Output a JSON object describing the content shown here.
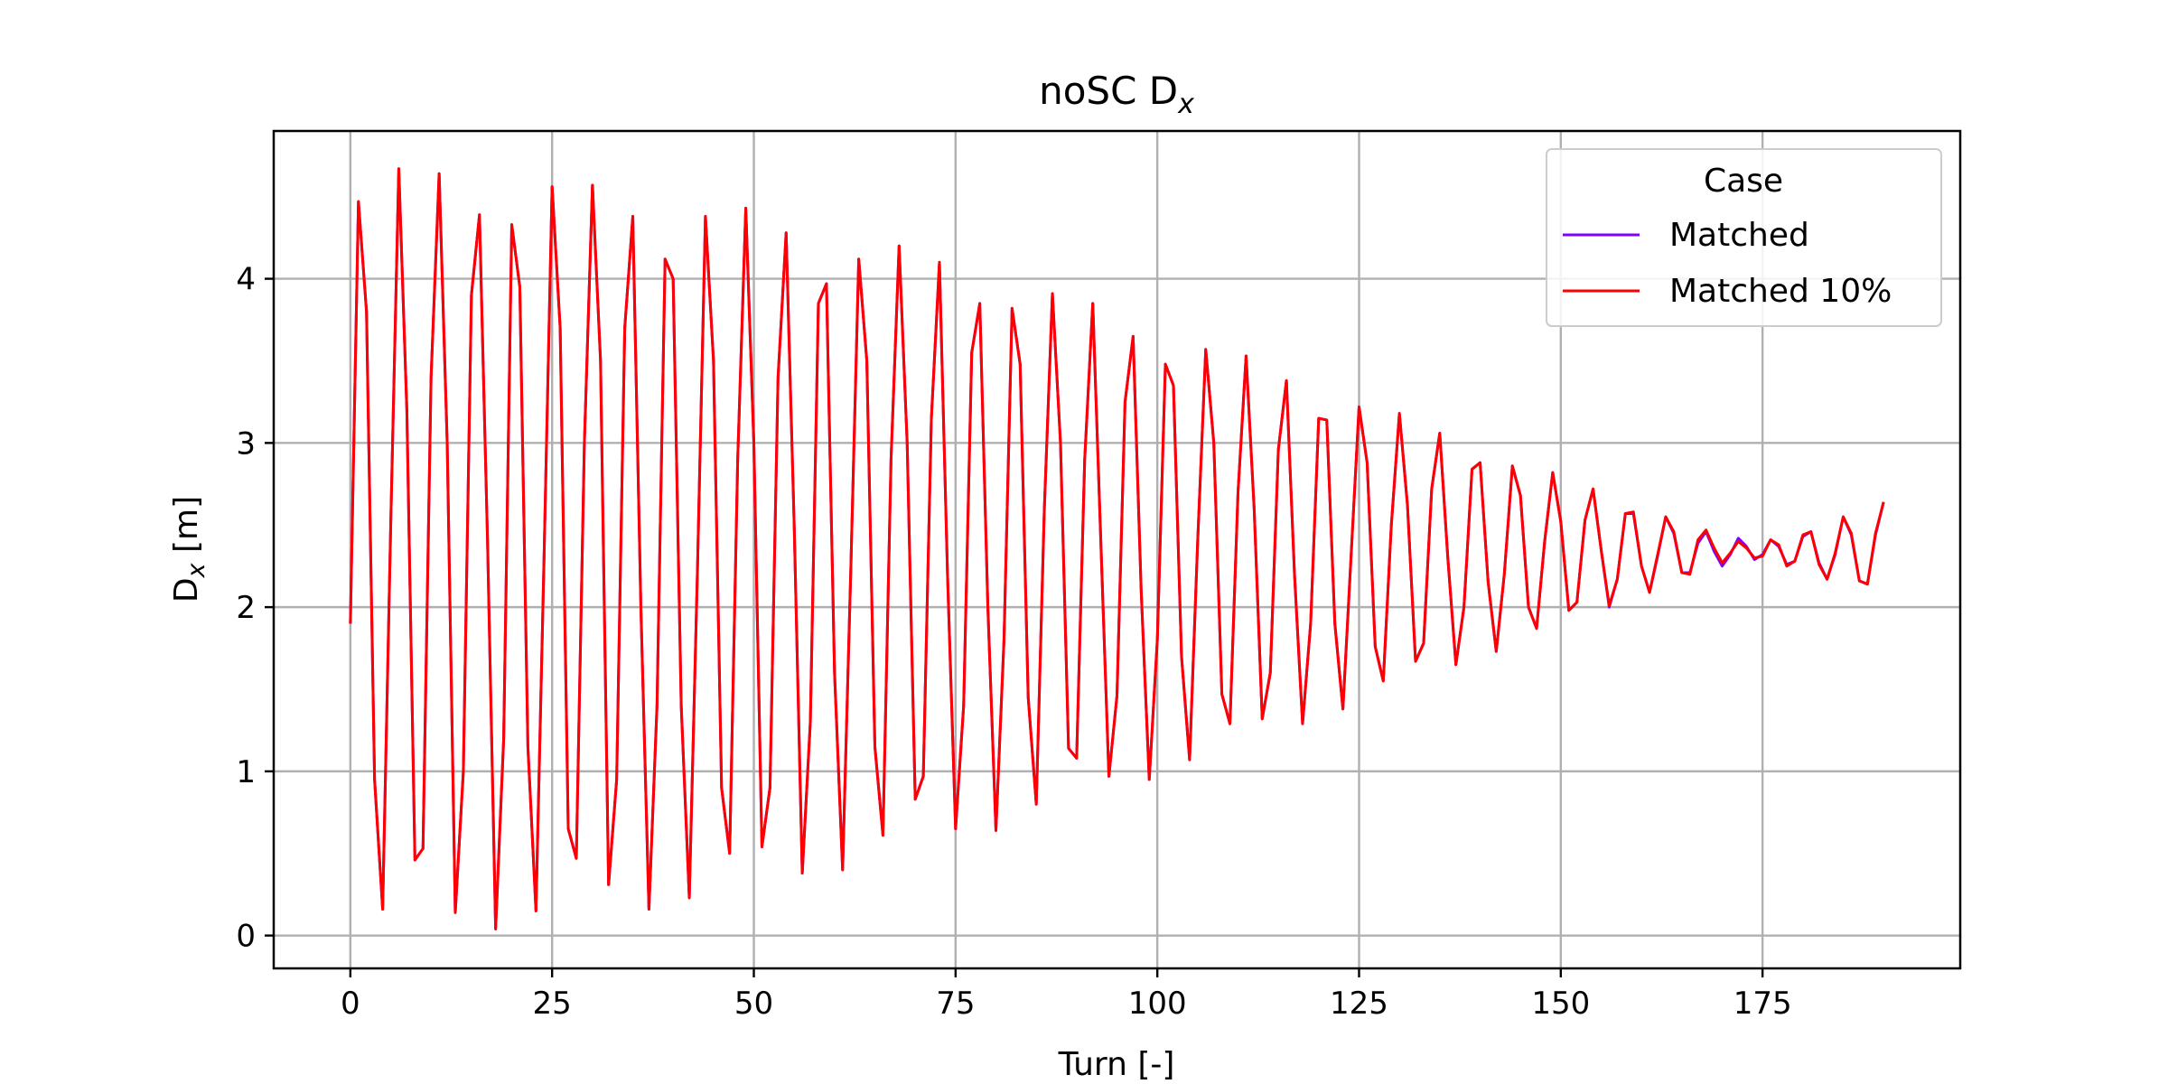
{
  "chart_data": {
    "type": "line",
    "title": {
      "main": "noSC D",
      "sub": "x"
    },
    "xlabel": "Turn [-]",
    "ylabel": {
      "main": "D",
      "sub": "x",
      "rest": " [m]"
    },
    "xlim": [
      -9.5,
      199.5
    ],
    "ylim": [
      -0.2,
      4.9
    ],
    "xticks": [
      0,
      25,
      50,
      75,
      100,
      125,
      150,
      175
    ],
    "yticks": [
      0,
      1,
      2,
      3,
      4
    ],
    "grid": true,
    "legend": {
      "title": "Case",
      "position": "top-right"
    },
    "series": [
      {
        "name": "Matched",
        "color": "#8000ff",
        "x": [
          0,
          1,
          2,
          3,
          4,
          5,
          6,
          7,
          8,
          9,
          10,
          11,
          12,
          13,
          14,
          15,
          16,
          17,
          18,
          19,
          20,
          21,
          22,
          23,
          24,
          25,
          26,
          27,
          28,
          29,
          30,
          31,
          32,
          33,
          34,
          35,
          36,
          37,
          38,
          39,
          40,
          41,
          42,
          43,
          44,
          45,
          46,
          47,
          48,
          49,
          50,
          51,
          52,
          53,
          54,
          55,
          56,
          57,
          58,
          59,
          60,
          61,
          62,
          63,
          64,
          65,
          66,
          67,
          68,
          69,
          70,
          71,
          72,
          73,
          74,
          75,
          76,
          77,
          78,
          79,
          80,
          81,
          82,
          83,
          84,
          85,
          86,
          87,
          88,
          89,
          90,
          91,
          92,
          93,
          94,
          95,
          96,
          97,
          98,
          99,
          100,
          101,
          102,
          103,
          104,
          105,
          106,
          107,
          108,
          109,
          110,
          111,
          112,
          113,
          114,
          115,
          116,
          117,
          118,
          119,
          120,
          121,
          122,
          123,
          124,
          125,
          126,
          127,
          128,
          129,
          130,
          131,
          132,
          133,
          134,
          135,
          136,
          137,
          138,
          139,
          140,
          141,
          142,
          143,
          144,
          145,
          146,
          147,
          148,
          149,
          150,
          151,
          152,
          153,
          154,
          155,
          156,
          157,
          158,
          159,
          160,
          161,
          162,
          163,
          164,
          165,
          166,
          167,
          168,
          169,
          170,
          171,
          172,
          173,
          174,
          175,
          176,
          177,
          178,
          179,
          180,
          181,
          182,
          183,
          184,
          185,
          186,
          187,
          188,
          189,
          190
        ],
        "y": [
          1.9,
          4.47,
          3.8,
          0.95,
          0.16,
          2.5,
          4.67,
          3.2,
          0.46,
          0.53,
          3.4,
          4.64,
          3.0,
          0.14,
          1.0,
          3.9,
          4.39,
          2.4,
          0.04,
          1.2,
          4.33,
          3.95,
          1.15,
          0.15,
          2.3,
          4.56,
          3.7,
          0.65,
          0.47,
          3.0,
          4.57,
          3.5,
          0.31,
          0.95,
          3.7,
          4.38,
          2.0,
          0.16,
          1.4,
          4.12,
          4.0,
          1.4,
          0.23,
          2.2,
          4.38,
          3.5,
          0.9,
          0.5,
          2.9,
          4.43,
          3.0,
          0.54,
          0.9,
          3.4,
          4.28,
          2.5,
          0.38,
          1.3,
          3.85,
          3.97,
          1.6,
          0.4,
          2.2,
          4.12,
          3.5,
          1.15,
          0.61,
          2.9,
          4.2,
          3.0,
          0.83,
          0.97,
          3.15,
          4.1,
          2.2,
          0.65,
          1.4,
          3.55,
          3.85,
          2.0,
          0.64,
          1.8,
          3.82,
          3.48,
          1.45,
          0.8,
          2.6,
          3.91,
          3.0,
          1.14,
          1.08,
          2.9,
          3.85,
          2.4,
          0.97,
          1.46,
          3.25,
          3.65,
          2.1,
          0.95,
          1.8,
          3.48,
          3.35,
          1.7,
          1.07,
          2.4,
          3.57,
          3.0,
          1.47,
          1.29,
          2.7,
          3.53,
          2.6,
          1.32,
          1.6,
          2.96,
          3.38,
          2.2,
          1.29,
          1.9,
          3.15,
          3.14,
          1.9,
          1.38,
          2.3,
          3.22,
          2.88,
          1.76,
          1.55,
          2.5,
          3.18,
          2.62,
          1.67,
          1.78,
          2.72,
          3.06,
          2.3,
          1.65,
          2.0,
          2.84,
          2.88,
          2.15,
          1.73,
          2.2,
          2.86,
          2.68,
          2.0,
          1.87,
          2.4,
          2.82,
          2.52,
          1.98,
          2.03,
          2.53,
          2.72,
          2.35,
          2.0,
          2.17,
          2.57,
          2.57,
          2.25,
          2.09,
          2.31,
          2.55,
          2.45,
          2.21,
          2.21,
          2.39,
          2.46,
          2.34,
          2.25,
          2.32,
          2.42,
          2.37,
          2.29,
          2.32,
          2.41,
          2.37,
          2.26,
          2.28,
          2.43,
          2.46,
          2.27,
          2.17,
          2.32,
          2.55,
          2.44,
          2.16,
          2.14,
          2.44,
          2.64
        ]
      },
      {
        "name": "Matched 10%",
        "color": "#ff0000",
        "x": [
          0,
          1,
          2,
          3,
          4,
          5,
          6,
          7,
          8,
          9,
          10,
          11,
          12,
          13,
          14,
          15,
          16,
          17,
          18,
          19,
          20,
          21,
          22,
          23,
          24,
          25,
          26,
          27,
          28,
          29,
          30,
          31,
          32,
          33,
          34,
          35,
          36,
          37,
          38,
          39,
          40,
          41,
          42,
          43,
          44,
          45,
          46,
          47,
          48,
          49,
          50,
          51,
          52,
          53,
          54,
          55,
          56,
          57,
          58,
          59,
          60,
          61,
          62,
          63,
          64,
          65,
          66,
          67,
          68,
          69,
          70,
          71,
          72,
          73,
          74,
          75,
          76,
          77,
          78,
          79,
          80,
          81,
          82,
          83,
          84,
          85,
          86,
          87,
          88,
          89,
          90,
          91,
          92,
          93,
          94,
          95,
          96,
          97,
          98,
          99,
          100,
          101,
          102,
          103,
          104,
          105,
          106,
          107,
          108,
          109,
          110,
          111,
          112,
          113,
          114,
          115,
          116,
          117,
          118,
          119,
          120,
          121,
          122,
          123,
          124,
          125,
          126,
          127,
          128,
          129,
          130,
          131,
          132,
          133,
          134,
          135,
          136,
          137,
          138,
          139,
          140,
          141,
          142,
          143,
          144,
          145,
          146,
          147,
          148,
          149,
          150,
          151,
          152,
          153,
          154,
          155,
          156,
          157,
          158,
          159,
          160,
          161,
          162,
          163,
          164,
          165,
          166,
          167,
          168,
          169,
          170,
          171,
          172,
          173,
          174,
          175,
          176,
          177,
          178,
          179,
          180,
          181,
          182,
          183,
          184,
          185,
          186,
          187,
          188,
          189,
          190
        ],
        "y": [
          1.9,
          4.47,
          3.8,
          0.95,
          0.16,
          2.5,
          4.67,
          3.2,
          0.46,
          0.53,
          3.4,
          4.64,
          3.0,
          0.14,
          1.0,
          3.9,
          4.39,
          2.4,
          0.04,
          1.2,
          4.33,
          3.95,
          1.15,
          0.15,
          2.3,
          4.56,
          3.7,
          0.65,
          0.47,
          3.0,
          4.57,
          3.5,
          0.31,
          0.95,
          3.7,
          4.38,
          2.0,
          0.16,
          1.4,
          4.12,
          4.0,
          1.4,
          0.23,
          2.2,
          4.38,
          3.5,
          0.9,
          0.5,
          2.9,
          4.43,
          3.0,
          0.54,
          0.9,
          3.4,
          4.28,
          2.5,
          0.38,
          1.3,
          3.85,
          3.97,
          1.6,
          0.4,
          2.2,
          4.12,
          3.5,
          1.15,
          0.61,
          2.9,
          4.2,
          3.0,
          0.83,
          0.97,
          3.15,
          4.1,
          2.2,
          0.65,
          1.4,
          3.55,
          3.85,
          2.0,
          0.64,
          1.8,
          3.82,
          3.48,
          1.45,
          0.8,
          2.6,
          3.91,
          3.0,
          1.14,
          1.08,
          2.9,
          3.85,
          2.4,
          0.97,
          1.46,
          3.25,
          3.65,
          2.1,
          0.95,
          1.8,
          3.48,
          3.35,
          1.7,
          1.07,
          2.4,
          3.57,
          3.0,
          1.47,
          1.29,
          2.7,
          3.53,
          2.6,
          1.32,
          1.6,
          2.96,
          3.38,
          2.2,
          1.29,
          1.9,
          3.15,
          3.14,
          1.9,
          1.38,
          2.3,
          3.22,
          2.88,
          1.76,
          1.55,
          2.5,
          3.18,
          2.62,
          1.67,
          1.78,
          2.72,
          3.06,
          2.3,
          1.65,
          2.0,
          2.84,
          2.88,
          2.15,
          1.73,
          2.2,
          2.86,
          2.68,
          2.0,
          1.87,
          2.4,
          2.82,
          2.52,
          1.98,
          2.03,
          2.53,
          2.72,
          2.35,
          2.01,
          2.17,
          2.57,
          2.58,
          2.25,
          2.09,
          2.32,
          2.55,
          2.46,
          2.21,
          2.2,
          2.41,
          2.47,
          2.36,
          2.27,
          2.33,
          2.4,
          2.36,
          2.3,
          2.31,
          2.41,
          2.38,
          2.25,
          2.28,
          2.44,
          2.46,
          2.26,
          2.17,
          2.33,
          2.55,
          2.45,
          2.16,
          2.14,
          2.45,
          2.64
        ]
      }
    ]
  }
}
